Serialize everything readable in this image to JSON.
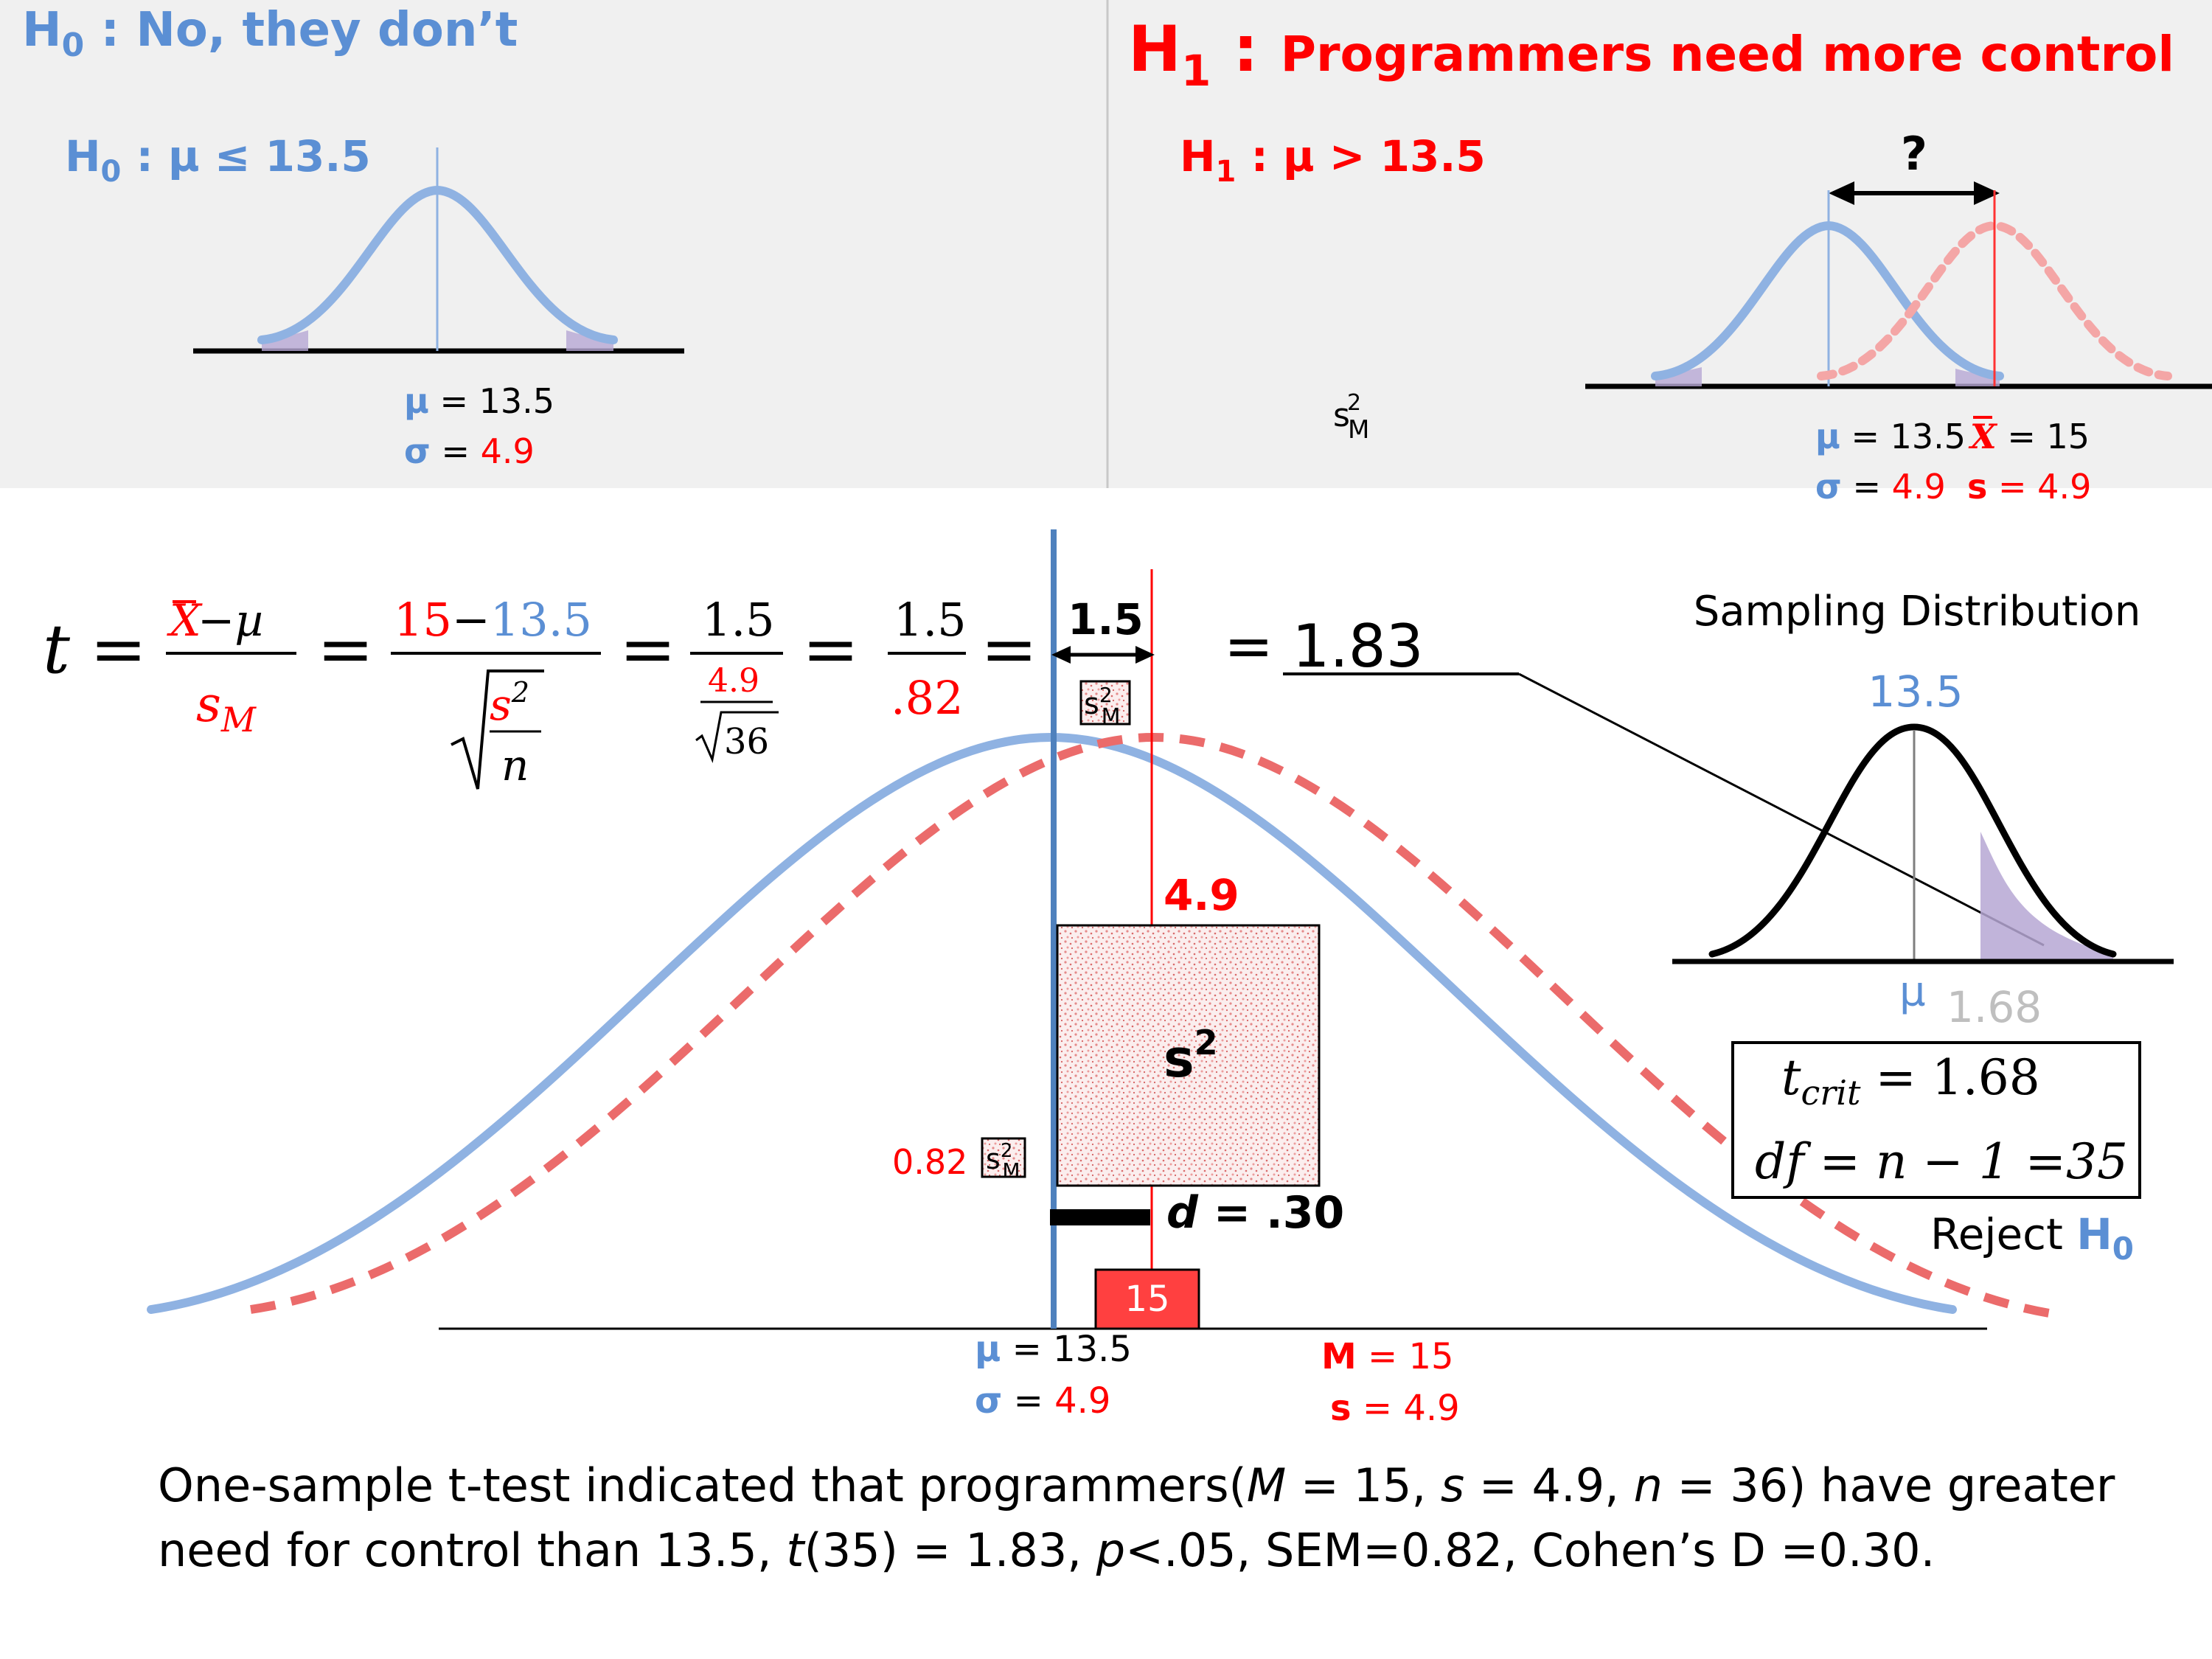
{
  "colors": {
    "blue": "#5b8fd4",
    "blue_curve": "#8fb2e2",
    "red": "#ff0000",
    "red_curve": "#eb6b6b",
    "panel_bg": "#f0f0f0",
    "grey_text": "#bfbfbf",
    "lavender": "#b6a7d4"
  },
  "top_left": {
    "title_h": "H",
    "title_sub": "0",
    "title_rest": " : No, they don’t",
    "hyp_h": "H",
    "hyp_sub": "0",
    "hyp_rest": " : µ ≤ 13.5",
    "mu_sym": "µ",
    "mu_val": " = 13.5",
    "sigma_sym": "σ",
    "sigma_eq": " = ",
    "sigma_val": "4.9"
  },
  "top_right": {
    "title_h": "H",
    "title_sub": "1",
    "title_colon": " : ",
    "title_rest": "Programmers need more control",
    "hyp_h": "H",
    "hyp_sub": "1",
    "hyp_rest": " : µ > 13.5",
    "question": "?",
    "sm_s": "s",
    "sm_sup": "2",
    "sm_sub": "M",
    "mu_sym": "µ",
    "mu_val": " = 13.5",
    "xbar_sym": "X",
    "xbar_val": " = 15",
    "sigma_sym": "σ",
    "sigma_eq": " = ",
    "sigma_val": "4.9",
    "s_sym": "s",
    "s_val": " = 4.9"
  },
  "formula": {
    "t": "t",
    "eq": "=",
    "xbar": "X",
    "minus_mu": " −µ",
    "s_m": "s",
    "s_m_sub": "M",
    "num2_a": "15",
    "num2_minus": "−",
    "num2_b": "13.5",
    "s_sq": "s",
    "s_sq_sup": "2",
    "n": "n",
    "num3": "1.5",
    "den3_top": "4.9",
    "den3_bottom": "36",
    "num4": "1.5",
    "den4": ".82",
    "num5": "1.5",
    "result": "= 1.83"
  },
  "main_diagram": {
    "s_sq_label": "s",
    "s_sq_sup": "2",
    "side_label": "4.9",
    "sem_label": "0.82",
    "d_label_d": "d",
    "d_label_val": " = .30",
    "sample_box": "15",
    "mu_sym": "µ",
    "mu_val": " = 13.5",
    "sigma_sym": "σ",
    "sigma_eq": " = ",
    "sigma_val": "4.9",
    "m_sym": "M",
    "m_val": " = 15",
    "s_sym": "s",
    "s_val": " = 4.9"
  },
  "sampling": {
    "title": "Sampling Distribution",
    "center_label": "13.5",
    "mu_sym": "µ",
    "crit_label": "1.68",
    "tcrit_t": "t",
    "tcrit_sub": "crit",
    "tcrit_val": "=  1.68",
    "df_text": "df",
    "df_rest": " = n − 1 =35",
    "reject": "Reject ",
    "reject_h": "H",
    "reject_sub": "0"
  },
  "conclusion": {
    "line1_a": "One-sample t-test indicated that programmers(",
    "line1_m": "M",
    "line1_b": " = 15, ",
    "line1_s": "s",
    "line1_c": " = 4.9, ",
    "line1_n": "n",
    "line1_d": " = 36) have greater",
    "line2_a": "need for control than 13.5, ",
    "line2_t": "t",
    "line2_b": "(35) = 1.83, ",
    "line2_p": "p",
    "line2_c": "<.05, SEM=0.82,  Cohen’s D =0.30."
  }
}
